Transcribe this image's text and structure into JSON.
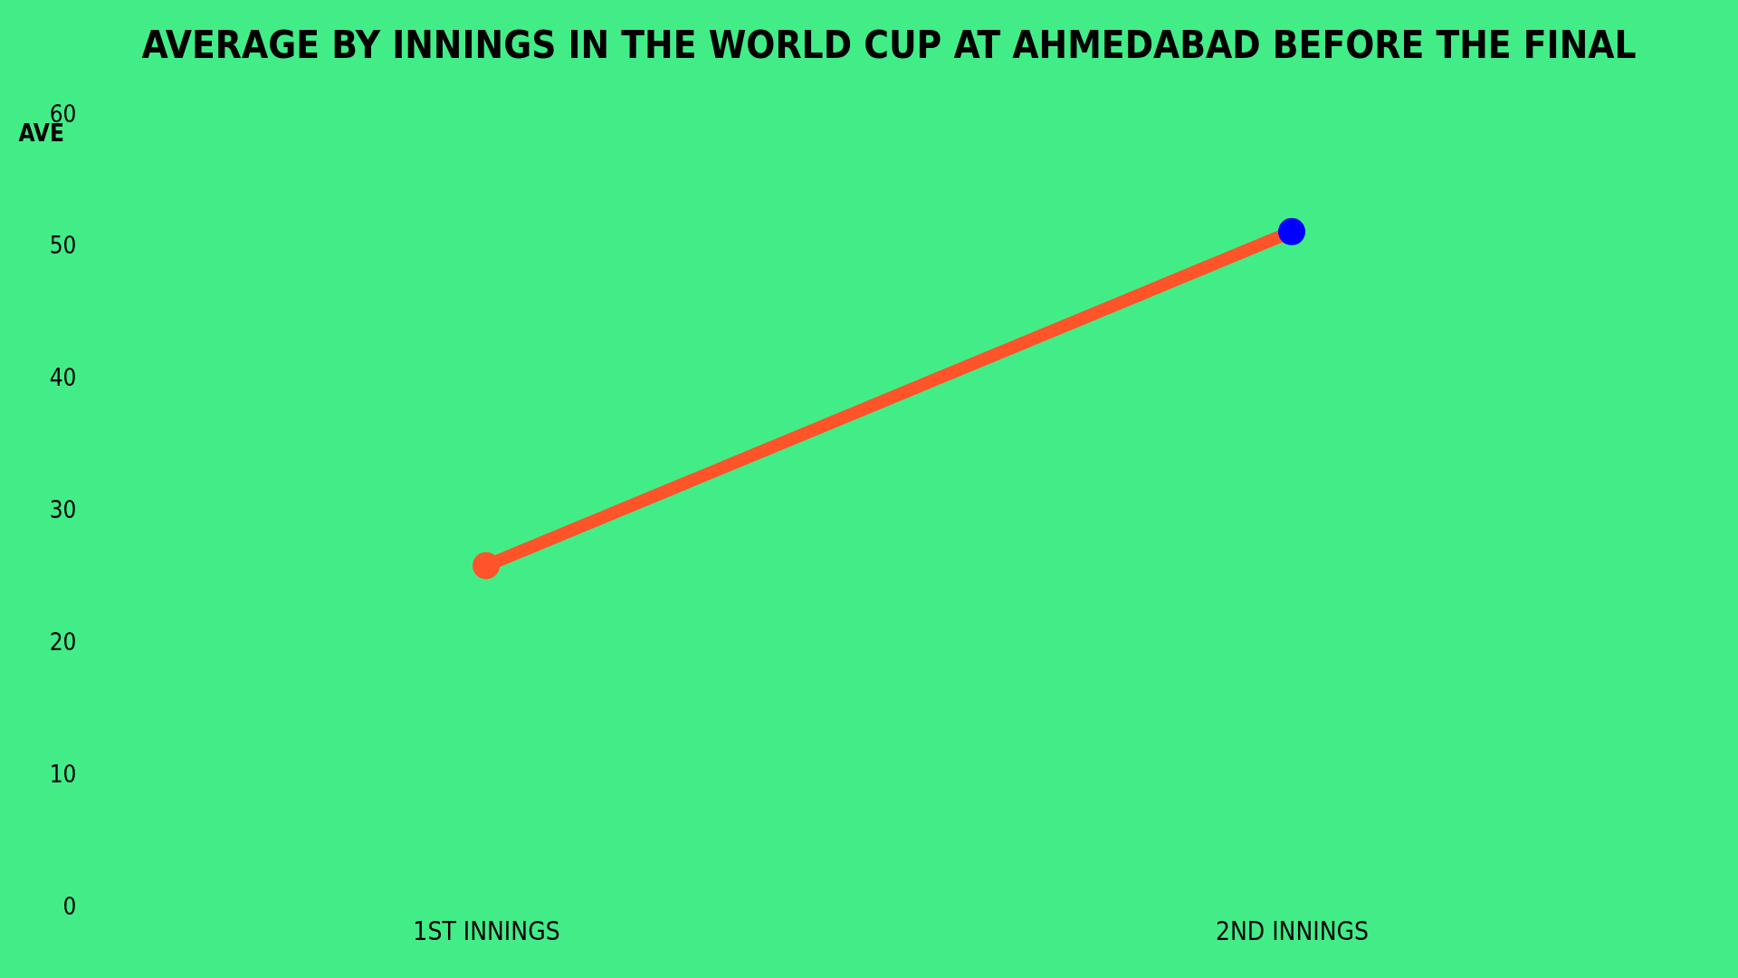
{
  "chart_data": {
    "type": "line",
    "title": "AVERAGE BY INNINGS IN THE WORLD CUP AT AHMEDABAD  BEFORE THE FINAL",
    "ylabel": "AVE",
    "categories": [
      "1ST INNINGS",
      "2ND INNINGS"
    ],
    "series": [
      {
        "color": "#ff5329",
        "colors": [
          "#ff5329",
          "#0000ff"
        ],
        "values": [
          25.8,
          51.1
        ]
      }
    ],
    "ylim": [
      0,
      60
    ],
    "yticks": [
      0,
      10,
      20,
      30,
      40,
      50,
      60
    ],
    "grid": false,
    "marker": "circle",
    "line_style": "solid"
  }
}
